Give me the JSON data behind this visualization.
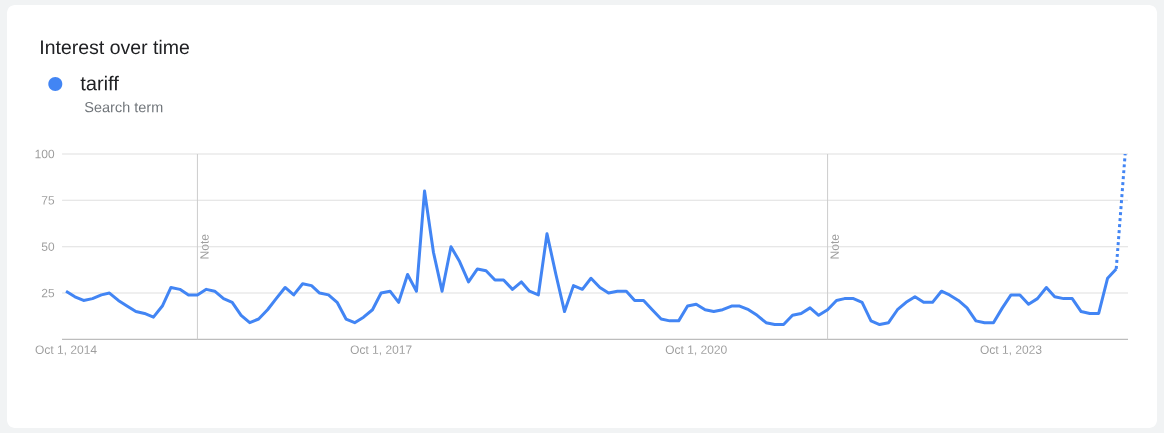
{
  "chart_data": {
    "type": "line",
    "title": "Interest over time",
    "annotations": [
      "Search term"
    ],
    "x": [
      "2014-10",
      "2014-11",
      "2014-12",
      "2015-01",
      "2015-02",
      "2015-03",
      "2015-04",
      "2015-05",
      "2015-06",
      "2015-07",
      "2015-08",
      "2015-09",
      "2015-10",
      "2015-11",
      "2015-12",
      "2016-01",
      "2016-02",
      "2016-03",
      "2016-04",
      "2016-05",
      "2016-06",
      "2016-07",
      "2016-08",
      "2016-09",
      "2016-10",
      "2016-11",
      "2016-12",
      "2017-01",
      "2017-02",
      "2017-03",
      "2017-04",
      "2017-05",
      "2017-06",
      "2017-07",
      "2017-08",
      "2017-09",
      "2017-10",
      "2017-11",
      "2017-12",
      "2018-01",
      "2018-02",
      "2018-03",
      "2018-04",
      "2018-05",
      "2018-06",
      "2018-07",
      "2018-08",
      "2018-09",
      "2018-10",
      "2018-11",
      "2018-12",
      "2019-01",
      "2019-02",
      "2019-03",
      "2019-04",
      "2019-05",
      "2019-06",
      "2019-07",
      "2019-08",
      "2019-09",
      "2019-10",
      "2019-11",
      "2019-12",
      "2020-01",
      "2020-02",
      "2020-03",
      "2020-04",
      "2020-05",
      "2020-06",
      "2020-07",
      "2020-08",
      "2020-09",
      "2020-10",
      "2020-11",
      "2020-12",
      "2021-01",
      "2021-02",
      "2021-03",
      "2021-04",
      "2021-05",
      "2021-06",
      "2021-07",
      "2021-08",
      "2021-09",
      "2021-10",
      "2021-11",
      "2021-12",
      "2022-01",
      "2022-02",
      "2022-03",
      "2022-04",
      "2022-05",
      "2022-06",
      "2022-07",
      "2022-08",
      "2022-09",
      "2022-10",
      "2022-11",
      "2022-12",
      "2023-01",
      "2023-02",
      "2023-03",
      "2023-04",
      "2023-05",
      "2023-06",
      "2023-07",
      "2023-08",
      "2023-09",
      "2023-10",
      "2023-11",
      "2023-12",
      "2024-01",
      "2024-02",
      "2024-03",
      "2024-04",
      "2024-05",
      "2024-06",
      "2024-07",
      "2024-08",
      "2024-09",
      "2024-10"
    ],
    "series": [
      {
        "name": "tariff",
        "color": "#4285f4",
        "values": [
          26,
          23,
          21,
          22,
          24,
          25,
          21,
          18,
          15,
          14,
          12,
          18,
          28,
          27,
          24,
          24,
          27,
          26,
          22,
          20,
          13,
          9,
          11,
          16,
          22,
          28,
          24,
          30,
          29,
          25,
          24,
          20,
          11,
          9,
          12,
          16,
          25,
          26,
          20,
          35,
          26,
          80,
          47,
          26,
          50,
          42,
          31,
          38,
          37,
          32,
          32,
          27,
          31,
          26,
          24,
          57,
          35,
          15,
          29,
          27,
          33,
          28,
          25,
          26,
          26,
          21,
          21,
          16,
          11,
          10,
          10,
          18,
          19,
          16,
          15,
          16,
          18,
          18,
          16,
          13,
          9,
          8,
          8,
          13,
          14,
          17,
          13,
          16,
          21,
          22,
          22,
          20,
          10,
          8,
          9,
          16,
          20,
          23,
          20,
          20,
          26,
          24,
          21,
          17,
          10,
          9,
          9,
          17,
          24,
          24,
          19,
          22,
          28,
          23,
          22,
          22,
          15,
          14,
          14,
          33,
          38
        ]
      },
      {
        "color": "#4285f4",
        "x": [
          "2024-10",
          "2024-11"
        ],
        "values": [
          38,
          100
        ],
        "line_style": "dotted"
      }
    ],
    "xlim": [
      "2014-09-17",
      "2024-11-11"
    ],
    "xticks": [
      {
        "value": "2014-10-01",
        "label": "Oct 1, 2014"
      },
      {
        "value": "2017-10-01",
        "label": "Oct 1, 2017"
      },
      {
        "value": "2020-10-01",
        "label": "Oct 1, 2020"
      },
      {
        "value": "2023-10-01",
        "label": "Oct 1, 2023"
      }
    ],
    "ylim": [
      0,
      100
    ],
    "yticks": [
      25,
      50,
      75,
      100
    ],
    "grid": "y",
    "legend": "top left",
    "line_style": "solid",
    "ref_lines": [
      {
        "axis": "x",
        "value": "2016-01-01",
        "label": "Note",
        "color": "#cccccc"
      },
      {
        "axis": "x",
        "value": "2022-01-01",
        "label": "Note",
        "color": "#cccccc"
      }
    ]
  }
}
